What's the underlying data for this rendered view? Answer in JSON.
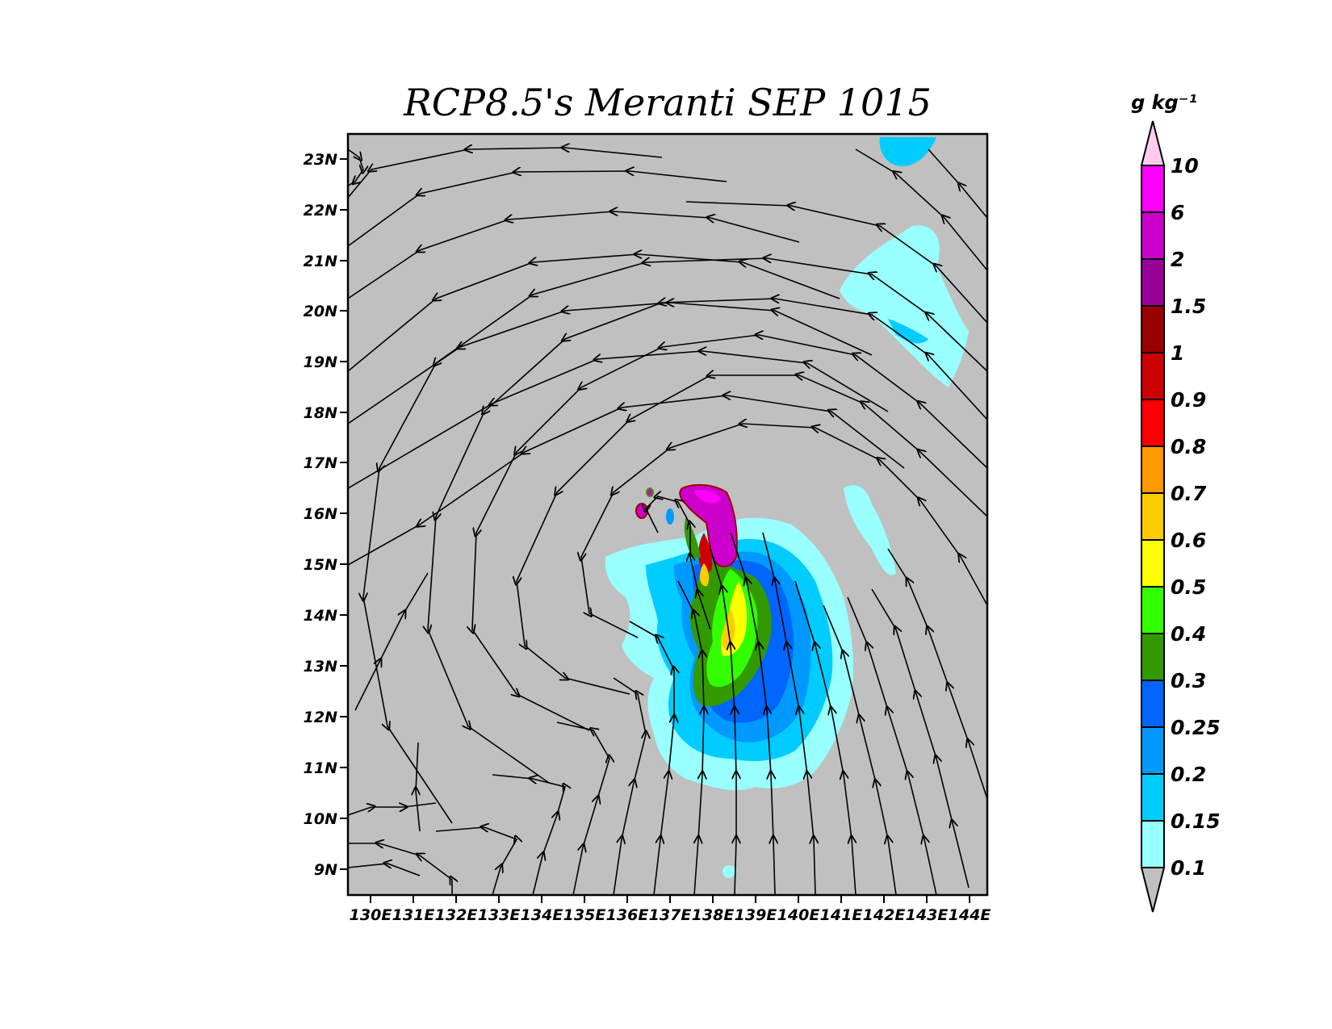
{
  "title": "RCP8.5's Meranti SEP 1015",
  "map": {
    "background_color": "#c0c0c0",
    "lat_labels": [
      "23N",
      "22N",
      "21N",
      "20N",
      "19N",
      "18N",
      "17N",
      "16N",
      "15N",
      "14N",
      "13N",
      "12N",
      "11N",
      "10N",
      "9N"
    ],
    "lon_labels": [
      "130E",
      "131E",
      "132E",
      "133E",
      "134E",
      "135E",
      "136E",
      "137E",
      "138E",
      "139E",
      "140E",
      "141E",
      "142E",
      "143E",
      "144E"
    ],
    "lat_range": [
      8.5,
      23.5
    ],
    "lon_range": [
      129.9,
      144.4
    ],
    "streamline_color": "#000000"
  },
  "colorbar": {
    "units": "g kg⁻¹",
    "levels": [
      "10",
      "6",
      "2",
      "1.5",
      "1",
      "0.9",
      "0.8",
      "0.7",
      "0.6",
      "0.5",
      "0.4",
      "0.3",
      "0.25",
      "0.2",
      "0.15",
      "0.1"
    ],
    "colors": [
      "#ffccf0",
      "#ff00ff",
      "#cc00cc",
      "#990099",
      "#990000",
      "#cc0000",
      "#ff0000",
      "#ff9900",
      "#ffcc00",
      "#ffff00",
      "#33ff00",
      "#339900",
      "#0066ff",
      "#0099ff",
      "#00ccff",
      "#99ffff",
      "#c0c0c0"
    ]
  }
}
